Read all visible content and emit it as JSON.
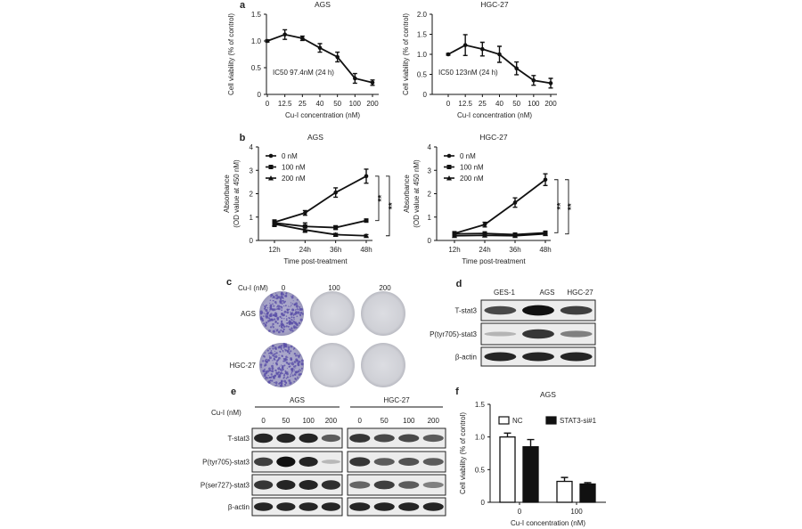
{
  "panels": {
    "a": "a",
    "b": "b",
    "c": "c",
    "d": "d",
    "e": "e",
    "f": "f"
  },
  "chart_data": [
    {
      "panel": "a",
      "type": "line",
      "title": "AGS",
      "xlabel": "Cu-I concentration (nM)",
      "ylabel": [
        "Cell viability (% of control)"
      ],
      "categories": [
        "0",
        "12.5",
        "25",
        "40",
        "50",
        "100",
        "200"
      ],
      "ylim": [
        0,
        1.5
      ],
      "yticks": [
        "0",
        "0.5",
        "1.0",
        "1.5"
      ],
      "annotation": "IC50 97.4nM (24 h)",
      "series": [
        {
          "values": [
            1.0,
            1.12,
            1.05,
            0.87,
            0.7,
            0.3,
            0.22
          ],
          "errors": [
            0.02,
            0.09,
            0.04,
            0.08,
            0.09,
            0.09,
            0.05
          ],
          "marker": "circle"
        }
      ]
    },
    {
      "panel": "a",
      "type": "line",
      "title": "HGC-27",
      "xlabel": "Cu-I concentration (nM)",
      "ylabel": [
        "Cell viability (% of control)"
      ],
      "categories": [
        "0",
        "12.5",
        "25",
        "40",
        "50",
        "100",
        "200"
      ],
      "ylim": [
        0,
        2.0
      ],
      "yticks": [
        "0",
        "0.5",
        "1.0",
        "1.5",
        "2.0"
      ],
      "annotation": "IC50 123nM (24 h)",
      "series": [
        {
          "values": [
            1.0,
            1.23,
            1.13,
            1.0,
            0.65,
            0.35,
            0.28
          ],
          "errors": [
            0.02,
            0.26,
            0.17,
            0.2,
            0.16,
            0.12,
            0.12
          ],
          "marker": "circle"
        }
      ]
    },
    {
      "panel": "b",
      "type": "line",
      "title": "AGS",
      "xlabel": "Time post-treatment",
      "ylabel": [
        "Absorbance",
        "(OD value at 450 nM)"
      ],
      "categories": [
        "12h",
        "24h",
        "36h",
        "48h"
      ],
      "ylim": [
        0,
        4
      ],
      "yticks": [
        "0",
        "1",
        "2",
        "3",
        "4"
      ],
      "significance": [
        "**",
        "**"
      ],
      "series": [
        {
          "name": "0 nM",
          "values": [
            0.78,
            1.18,
            2.05,
            2.75
          ],
          "errors": [
            0.1,
            0.1,
            0.2,
            0.3
          ],
          "marker": "circle"
        },
        {
          "name": "100 nM",
          "values": [
            0.75,
            0.6,
            0.55,
            0.85
          ],
          "errors": [
            0.1,
            0.15,
            0.08,
            0.06
          ],
          "marker": "square"
        },
        {
          "name": "200 nM",
          "values": [
            0.7,
            0.45,
            0.25,
            0.2
          ],
          "errors": [
            0.1,
            0.1,
            0.05,
            0.05
          ],
          "marker": "triangle"
        }
      ]
    },
    {
      "panel": "b",
      "type": "line",
      "title": "HGC-27",
      "xlabel": "Time post-treatment",
      "ylabel": [
        "Absorbance",
        "(OD value at 450 nM)"
      ],
      "categories": [
        "12h",
        "24h",
        "36h",
        "48h"
      ],
      "ylim": [
        0,
        4
      ],
      "yticks": [
        "0",
        "1",
        "2",
        "3",
        "4"
      ],
      "significance": [
        "**",
        "**"
      ],
      "series": [
        {
          "name": "0 nM",
          "values": [
            0.3,
            0.68,
            1.62,
            2.6
          ],
          "errors": [
            0.08,
            0.1,
            0.2,
            0.25
          ],
          "marker": "circle"
        },
        {
          "name": "100 nM",
          "values": [
            0.28,
            0.3,
            0.25,
            0.33
          ],
          "errors": [
            0.05,
            0.05,
            0.05,
            0.05
          ],
          "marker": "square"
        },
        {
          "name": "200 nM",
          "values": [
            0.2,
            0.22,
            0.2,
            0.28
          ],
          "errors": [
            0.04,
            0.04,
            0.04,
            0.04
          ],
          "marker": "triangle"
        }
      ]
    },
    {
      "panel": "f",
      "type": "bar",
      "title": "AGS",
      "xlabel": "Cu-I concentration (nM)",
      "ylabel": [
        "Cell viability (% of control)"
      ],
      "categories": [
        "0",
        "100"
      ],
      "ylim": [
        0,
        1.5
      ],
      "yticks": [
        "0",
        "0.5",
        "1.0",
        "1.5"
      ],
      "legend": "top",
      "series": [
        {
          "name": "NC",
          "values": [
            1.0,
            0.32
          ],
          "errors": [
            0.06,
            0.06
          ],
          "color": "#ffffff"
        },
        {
          "name": "STAT3-si#1",
          "values": [
            0.85,
            0.28
          ],
          "errors": [
            0.11,
            0.02
          ],
          "color": "#111111"
        }
      ]
    }
  ],
  "colony": {
    "header_label": "Cu-I (nM)",
    "columns": [
      "0",
      "100",
      "200"
    ],
    "rows": [
      "AGS",
      "HGC-27"
    ],
    "colony_density": [
      [
        1,
        0,
        0
      ],
      [
        1,
        0,
        0
      ]
    ],
    "stain_color": "#5a4fa8"
  },
  "blot_d": {
    "columns": [
      "GES-1",
      "AGS",
      "HGC-27"
    ],
    "rows": [
      {
        "label": "T-stat3",
        "band_intensity": [
          0.7,
          1.0,
          0.75
        ]
      },
      {
        "label": "P(tyr705)-stat3",
        "band_intensity": [
          0.12,
          0.8,
          0.4
        ]
      },
      {
        "label": "β-actin",
        "band_intensity": [
          0.9,
          0.9,
          0.9
        ]
      }
    ]
  },
  "blot_e": {
    "header_label": "Cu-I (nM)",
    "groups": [
      {
        "name": "AGS",
        "doses": [
          "0",
          "50",
          "100",
          "200"
        ]
      },
      {
        "name": "HGC-27",
        "doses": [
          "0",
          "50",
          "100",
          "200"
        ]
      }
    ],
    "rows": [
      {
        "label": "T-stat3",
        "band_intensity": [
          [
            0.9,
            0.9,
            0.9,
            0.6
          ],
          [
            0.8,
            0.7,
            0.7,
            0.6
          ]
        ]
      },
      {
        "label": "P(tyr705)-stat3",
        "band_intensity": [
          [
            0.75,
            1.0,
            0.9,
            0.1
          ],
          [
            0.8,
            0.6,
            0.65,
            0.6
          ]
        ]
      },
      {
        "label": "P(ser727)-stat3",
        "band_intensity": [
          [
            0.8,
            0.9,
            0.9,
            0.85
          ],
          [
            0.55,
            0.75,
            0.6,
            0.4
          ]
        ]
      },
      {
        "label": "β-actin",
        "band_intensity": [
          [
            0.9,
            0.9,
            0.9,
            0.9
          ],
          [
            0.9,
            0.9,
            0.9,
            0.9
          ]
        ]
      }
    ]
  }
}
